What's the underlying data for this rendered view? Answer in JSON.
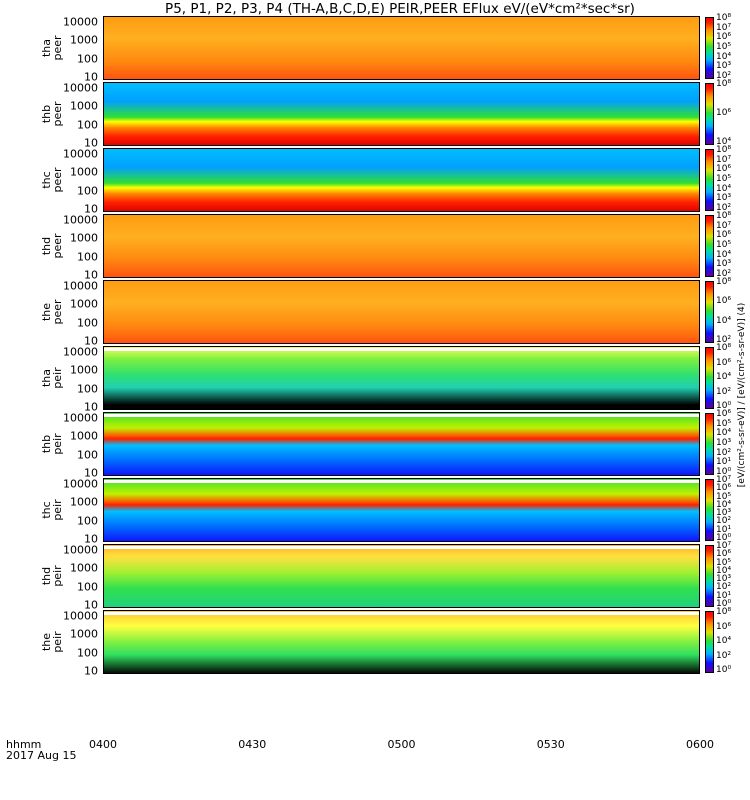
{
  "title": "P5, P1, P2, P3, P4 (TH-A,B,C,D,E) PEIR,PEER EFlux eV/(eV*cm²*sec*sr)",
  "x_label": "hhmm",
  "date_label": "2017 Aug 15",
  "colorbar_units": "[eV/(cm²-s-sr-eV)] / [eV/(cm²-s-sr-eV)] (4)",
  "chart_data": {
    "type": "heatmap",
    "x_ticks": [
      "0400",
      "0430",
      "0500",
      "0530",
      "0600"
    ],
    "y_ticks": [
      "10",
      "100",
      "1000",
      "10000"
    ],
    "y_scale": "log",
    "color_scale": "log",
    "panels": [
      {
        "probe": "tha",
        "species": "peer",
        "label": "tha\npeer",
        "colorbar_ticks": [
          "10²",
          "10³",
          "10⁴",
          "10⁵",
          "10⁶",
          "10⁷",
          "10⁸"
        ],
        "pattern": "warm-dense"
      },
      {
        "probe": "thb",
        "species": "peer",
        "label": "thb\npeer",
        "colorbar_ticks": [
          "10⁴",
          "10⁶",
          "10⁸"
        ],
        "pattern": "noisy-top-red-bottom"
      },
      {
        "probe": "thc",
        "species": "peer",
        "label": "thc\npeer",
        "colorbar_ticks": [
          "10²",
          "10³",
          "10⁴",
          "10⁵",
          "10⁶",
          "10⁷",
          "10⁸"
        ],
        "pattern": "noisy-top-red-bottom"
      },
      {
        "probe": "thd",
        "species": "peer",
        "label": "thd\npeer",
        "colorbar_ticks": [
          "10²",
          "10³",
          "10⁴",
          "10⁵",
          "10⁶",
          "10⁷",
          "10⁸"
        ],
        "pattern": "warm-dense"
      },
      {
        "probe": "the",
        "species": "peer",
        "label": "the\npeer",
        "colorbar_ticks": [
          "10²",
          "10⁴",
          "10⁶",
          "10⁸"
        ],
        "pattern": "warm-dense"
      },
      {
        "probe": "tha",
        "species": "peir",
        "label": "tha\npeir",
        "colorbar_ticks": [
          "10⁰",
          "10²",
          "10⁴",
          "10⁶",
          "10⁸"
        ],
        "pattern": "ion-black-bottom"
      },
      {
        "probe": "thb",
        "species": "peir",
        "label": "thb\npeir",
        "colorbar_ticks": [
          "10⁰",
          "10¹",
          "10²",
          "10³",
          "10⁴",
          "10⁵",
          "10⁶"
        ],
        "pattern": "ion-red-band"
      },
      {
        "probe": "thc",
        "species": "peir",
        "label": "thc\npeir",
        "colorbar_ticks": [
          "10⁰",
          "10¹",
          "10²",
          "10³",
          "10⁴",
          "10⁵",
          "10⁶",
          "10⁷"
        ],
        "pattern": "ion-red-band"
      },
      {
        "probe": "thd",
        "species": "peir",
        "label": "thd\npeir",
        "colorbar_ticks": [
          "10⁰",
          "10¹",
          "10²",
          "10³",
          "10⁴",
          "10⁵",
          "10⁶",
          "10⁷"
        ],
        "pattern": "ion-green"
      },
      {
        "probe": "the",
        "species": "peir",
        "label": "the\npeir",
        "colorbar_ticks": [
          "10⁰",
          "10²",
          "10⁴",
          "10⁶",
          "10⁸"
        ],
        "pattern": "ion-black-bottom-late"
      }
    ]
  }
}
